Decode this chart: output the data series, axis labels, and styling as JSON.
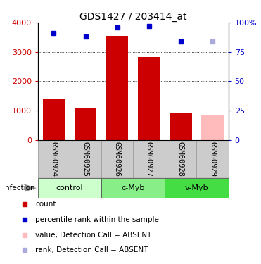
{
  "title": "GDS1427 / 203414_at",
  "samples": [
    "GSM60924",
    "GSM60925",
    "GSM60926",
    "GSM60927",
    "GSM60928",
    "GSM60929"
  ],
  "bar_values": [
    1380,
    1100,
    3550,
    2820,
    920,
    840
  ],
  "bar_colors": [
    "#cc0000",
    "#cc0000",
    "#cc0000",
    "#cc0000",
    "#cc0000",
    "#ffbbbb"
  ],
  "rank_values": [
    91,
    88,
    96,
    97,
    84,
    84
  ],
  "rank_colors": [
    "#0000cc",
    "#0000cc",
    "#0000cc",
    "#0000cc",
    "#0000cc",
    "#aaaadd"
  ],
  "ylim_left": [
    0,
    4000
  ],
  "ylim_right": [
    0,
    100
  ],
  "yticks_left": [
    0,
    1000,
    2000,
    3000,
    4000
  ],
  "ytick_labels_left": [
    "0",
    "1000",
    "2000",
    "3000",
    "4000"
  ],
  "yticks_right": [
    0,
    25,
    50,
    75,
    100
  ],
  "ytick_labels_right": [
    "0",
    "25",
    "50",
    "75",
    "100%"
  ],
  "groups": [
    {
      "label": "control",
      "indices": [
        0,
        1
      ],
      "color": "#ccffcc"
    },
    {
      "label": "c-Myb",
      "indices": [
        2,
        3
      ],
      "color": "#88ee88"
    },
    {
      "label": "v-Myb",
      "indices": [
        4,
        5
      ],
      "color": "#44dd44"
    }
  ],
  "infection_label": "infection",
  "legend_items": [
    {
      "color": "#cc0000",
      "label": "count"
    },
    {
      "color": "#0000cc",
      "label": "percentile rank within the sample"
    },
    {
      "color": "#ffbbbb",
      "label": "value, Detection Call = ABSENT"
    },
    {
      "color": "#aaaadd",
      "label": "rank, Detection Call = ABSENT"
    }
  ],
  "bg_color": "#ffffff"
}
